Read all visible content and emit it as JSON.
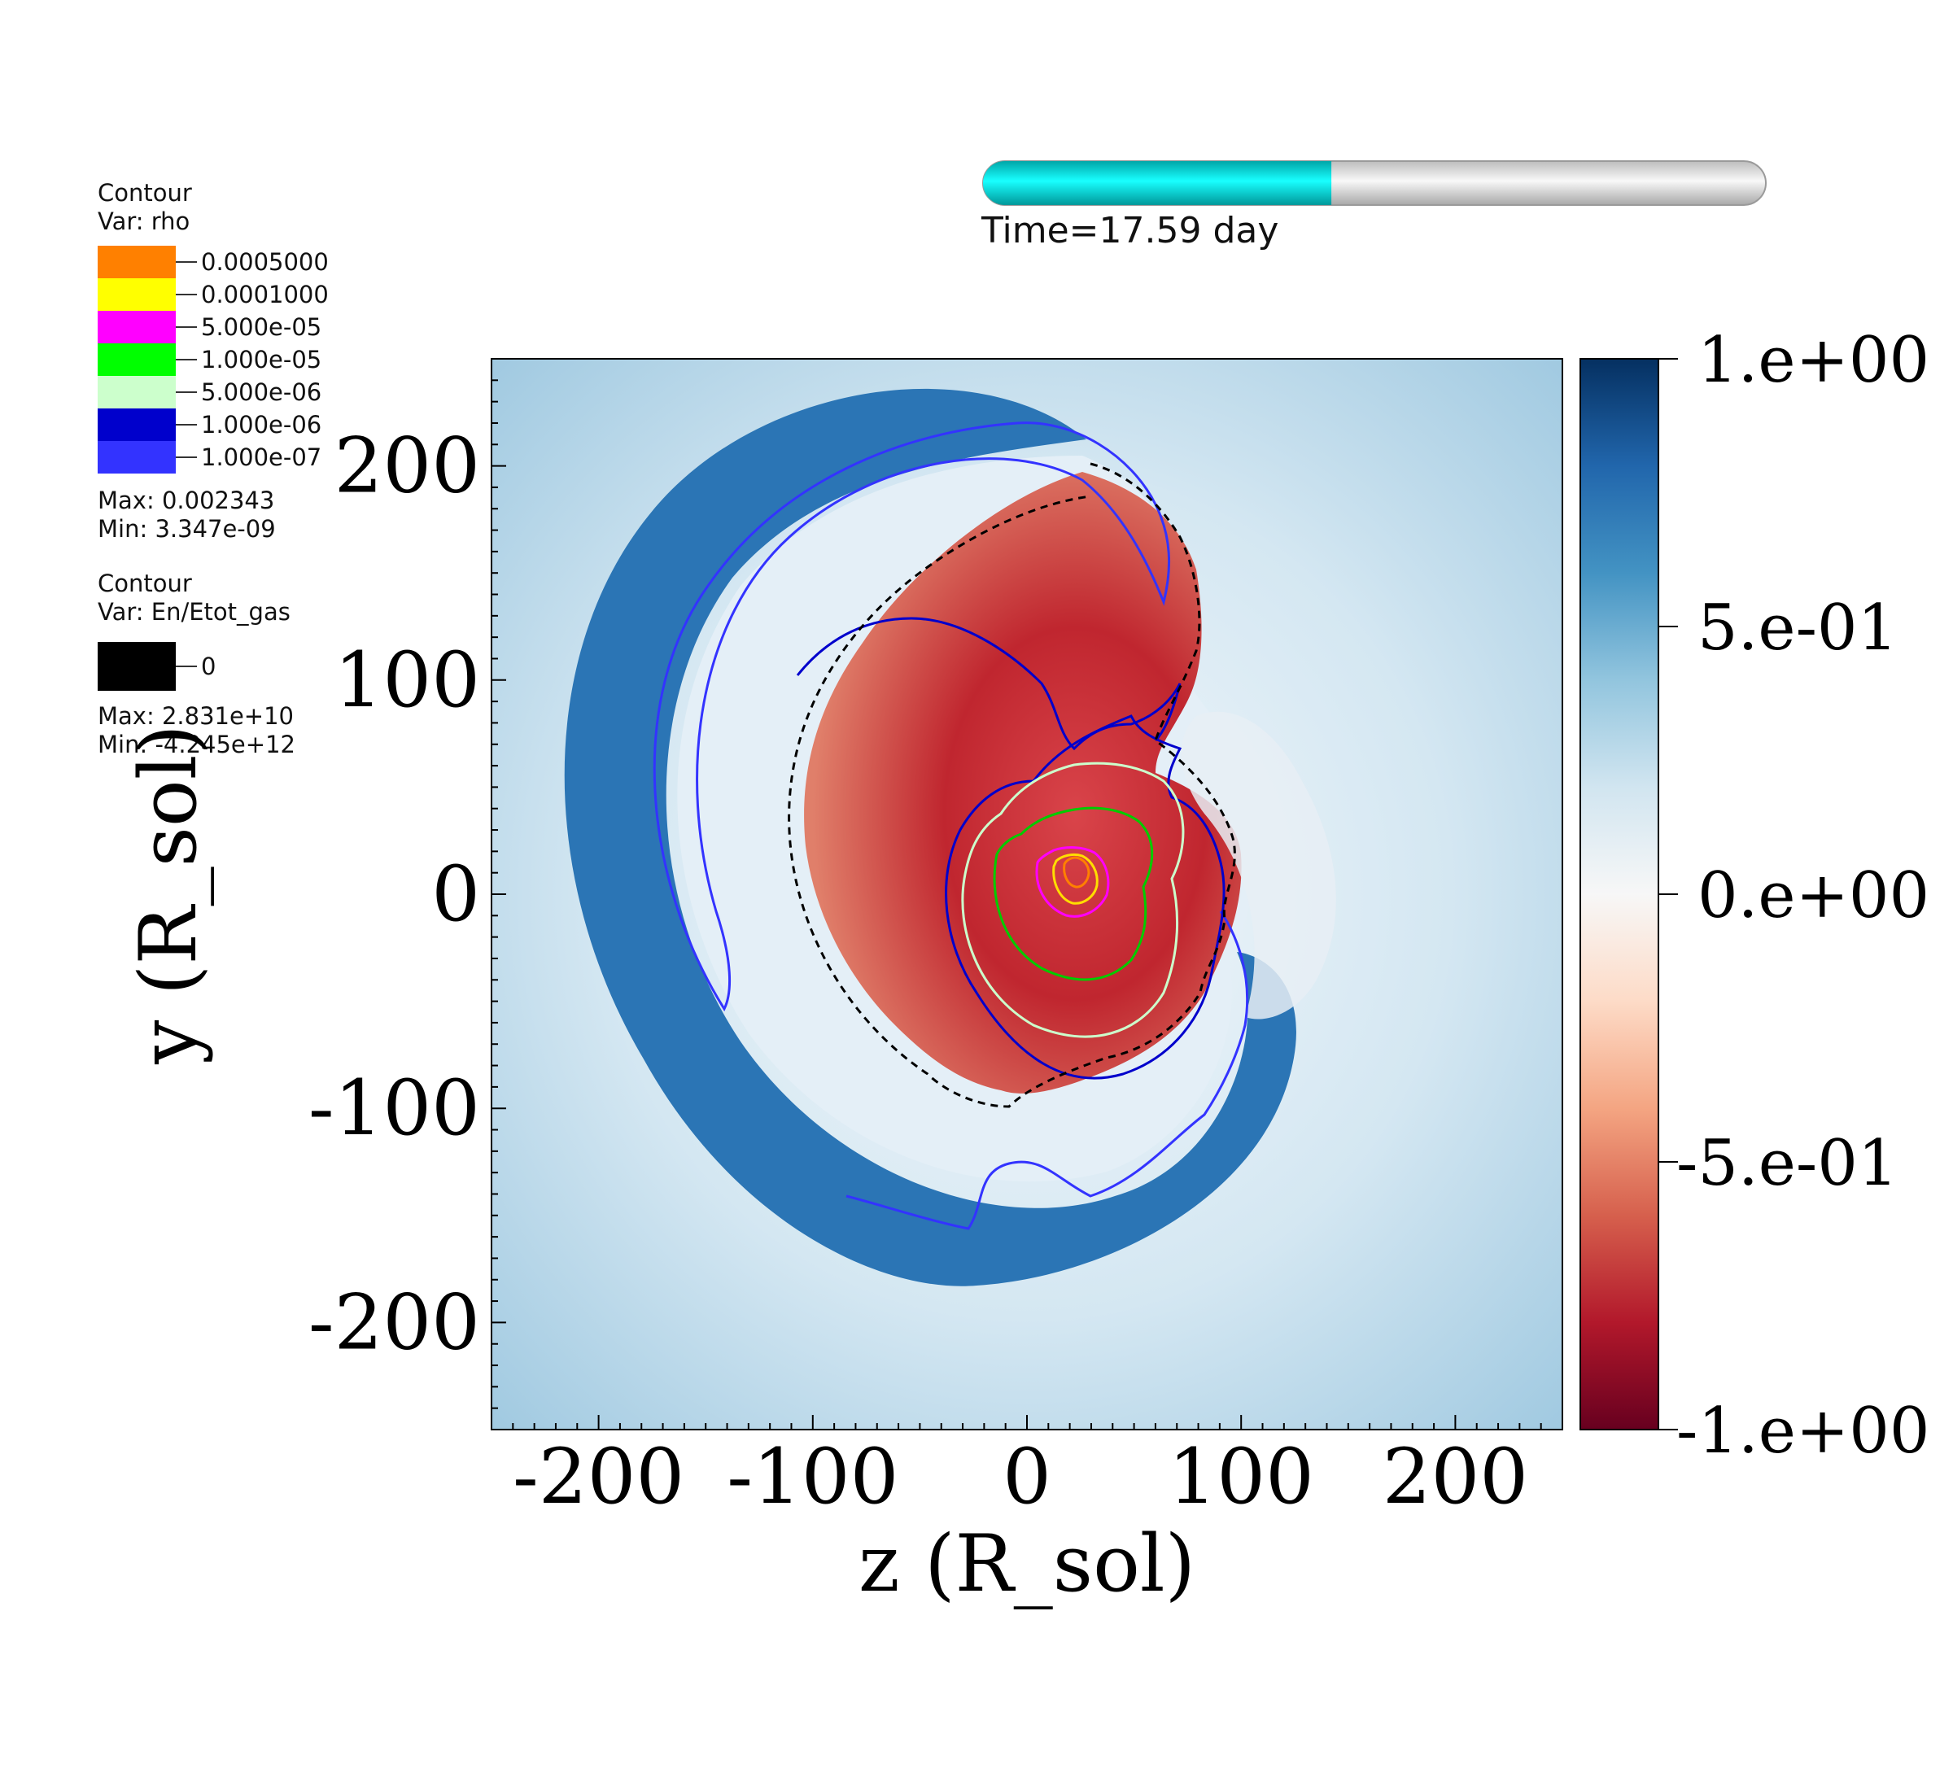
{
  "time": {
    "label": "Time=17.59 day",
    "progress_fraction": 0.445,
    "fill_color": "#00e8ea",
    "track_color": "#e6e6e6"
  },
  "legend_rho": {
    "title": "Contour",
    "var": "Var: rho",
    "levels": [
      {
        "value": "0.0005000",
        "color": "#ff8000"
      },
      {
        "value": "0.0001000",
        "color": "#ffff00"
      },
      {
        "value": "5.000e-05",
        "color": "#ff00ff"
      },
      {
        "value": "1.000e-05",
        "color": "#00ff00"
      },
      {
        "value": "5.000e-06",
        "color": "#ccffcc"
      },
      {
        "value": "1.000e-06",
        "color": "#0000cc"
      },
      {
        "value": "1.000e-07",
        "color": "#3333ff"
      }
    ],
    "max": "Max:  0.002343",
    "min": "Min:  3.347e-09"
  },
  "legend_en": {
    "title": "Contour",
    "var": "Var: En/Etot_gas",
    "levels": [
      {
        "value": "0",
        "color": "#000000"
      }
    ],
    "max": "Max:  2.831e+10",
    "min": "Min: -4.245e+12"
  },
  "chart_data": {
    "type": "heatmap",
    "xlabel": "z (R_sol)",
    "ylabel": "y (R_sol)",
    "xlim": [
      -250,
      250
    ],
    "ylim": [
      -250,
      250
    ],
    "xticks": [
      "-200",
      "-100",
      "0",
      "100",
      "200"
    ],
    "yticks": [
      "200",
      "100",
      "0",
      "-100",
      "-200"
    ],
    "xtick_values": [
      -200,
      -100,
      0,
      100,
      200
    ],
    "ytick_values": [
      200,
      100,
      0,
      -100,
      -200
    ],
    "colorbar": {
      "range": [
        -1,
        1
      ],
      "labels": [
        "1.e+00",
        "5.e-01",
        "0.e+00",
        "-5.e-01",
        "-1.e+00"
      ],
      "label_values": [
        1,
        0.5,
        0,
        -0.5,
        -1
      ],
      "colors": [
        "#053061",
        "#2166ac",
        "#4393c3",
        "#92c5de",
        "#d1e5f0",
        "#f7f7f7",
        "#fddbc7",
        "#f4a582",
        "#d6604d",
        "#b2182b",
        "#67001f"
      ]
    },
    "field_colors": {
      "background": "#a9cfe4",
      "outer_ring": "#2a74b4",
      "inner_light": "#e9f2f8",
      "core": "#c0262f"
    }
  }
}
